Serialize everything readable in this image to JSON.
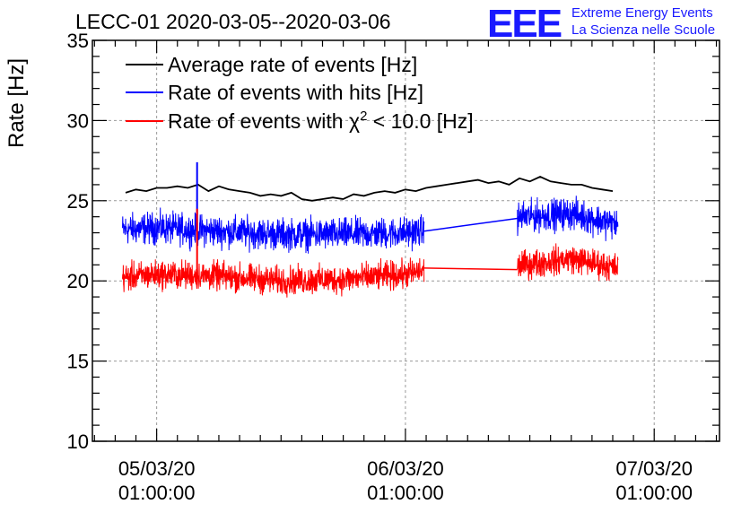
{
  "chart_data": {
    "type": "line",
    "title": "LECC-01 2020-03-05--2020-03-06",
    "ylabel": "Rate [Hz]",
    "xlabel": "",
    "ylim": [
      10,
      35
    ],
    "xlim_hours": [
      -6.2,
      54.3
    ],
    "y_ticks": [
      10,
      15,
      20,
      25,
      30,
      35
    ],
    "x_ticks": [
      {
        "hour": 0,
        "date": "05/03/20",
        "time": "01:00:00"
      },
      {
        "hour": 24,
        "date": "06/03/20",
        "time": "01:00:00"
      },
      {
        "hour": 48,
        "date": "07/03/20",
        "time": "01:00:00"
      }
    ],
    "grid": true,
    "legend_position": "top-left",
    "series": [
      {
        "name": "Average rate of events [Hz]",
        "color": "#000000",
        "segments": [
          [
            [
              -3,
              25.5
            ],
            [
              -2,
              25.7
            ],
            [
              -1,
              25.6
            ],
            [
              0,
              25.8
            ],
            [
              1,
              25.8
            ],
            [
              2,
              25.9
            ],
            [
              3,
              25.8
            ],
            [
              4,
              26.0
            ],
            [
              5,
              25.6
            ],
            [
              6,
              25.9
            ],
            [
              7,
              25.7
            ],
            [
              8,
              25.6
            ],
            [
              9,
              25.5
            ],
            [
              10,
              25.3
            ],
            [
              11,
              25.4
            ],
            [
              12,
              25.3
            ],
            [
              13,
              25.5
            ],
            [
              14,
              25.1
            ],
            [
              15,
              25.0
            ],
            [
              16,
              25.1
            ],
            [
              17,
              25.2
            ],
            [
              18,
              25.1
            ],
            [
              19,
              25.4
            ],
            [
              20,
              25.3
            ],
            [
              21,
              25.5
            ],
            [
              22,
              25.6
            ],
            [
              23,
              25.5
            ],
            [
              24,
              25.7
            ],
            [
              25,
              25.6
            ],
            [
              26,
              25.8
            ],
            [
              27,
              25.9
            ],
            [
              28,
              26.0
            ],
            [
              29,
              26.1
            ],
            [
              30,
              26.2
            ],
            [
              31,
              26.3
            ],
            [
              32,
              26.1
            ],
            [
              33,
              26.2
            ],
            [
              34,
              26.0
            ],
            [
              35,
              26.4
            ],
            [
              36,
              26.2
            ],
            [
              37,
              26.5
            ],
            [
              38,
              26.2
            ],
            [
              39,
              26.1
            ],
            [
              40,
              26.0
            ],
            [
              41,
              26.0
            ],
            [
              42,
              25.8
            ],
            [
              43,
              25.7
            ],
            [
              44,
              25.6
            ]
          ]
        ]
      },
      {
        "name": "Rate of events with hits [Hz]",
        "color": "#0000ff",
        "base": [
          [
            -3.5,
            23.2
          ],
          [
            0,
            23.3
          ],
          [
            6,
            23.1
          ],
          [
            12,
            22.9
          ],
          [
            18,
            22.9
          ],
          [
            24,
            23.0
          ],
          [
            25.5,
            23.1
          ],
          [
            35.5,
            24.0
          ],
          [
            40,
            24.2
          ],
          [
            44.5,
            23.5
          ]
        ],
        "segment_ranges": [
          [
            -3.3,
            25.8
          ],
          [
            34.8,
            44.5
          ]
        ],
        "bridge": [
          [
            25.8,
            23.1
          ],
          [
            34.8,
            23.9
          ]
        ],
        "noise_amplitude": 1.1,
        "spikes": [
          {
            "hour": 3.9,
            "value": 27.4
          }
        ]
      },
      {
        "name": "Rate of events with χ² < 10.0 [Hz]",
        "color": "#ff0000",
        "base": [
          [
            -3.5,
            20.2
          ],
          [
            0,
            20.4
          ],
          [
            6,
            20.3
          ],
          [
            12,
            20.0
          ],
          [
            18,
            20.1
          ],
          [
            24,
            20.4
          ],
          [
            25.5,
            20.6
          ],
          [
            35.5,
            21.0
          ],
          [
            40,
            21.4
          ],
          [
            44.5,
            20.8
          ]
        ],
        "segment_ranges": [
          [
            -3.3,
            25.8
          ],
          [
            34.8,
            44.5
          ]
        ],
        "bridge": [
          [
            25.8,
            20.8
          ],
          [
            34.8,
            20.7
          ]
        ],
        "noise_amplitude": 1.0,
        "spikes": [
          {
            "hour": 3.9,
            "value": 24.5
          }
        ]
      }
    ],
    "legend": [
      {
        "label": "Average rate of events [Hz]",
        "color": "#000000"
      },
      {
        "label": "Rate of events with hits [Hz]",
        "color": "#0000ff"
      },
      {
        "label_prefix": "Rate of events with ",
        "label_symbol": "χ",
        "label_sup": "2",
        "label_suffix": " < 10.0 [Hz]",
        "color": "#ff0000"
      }
    ]
  },
  "logo": {
    "mark": "EEE",
    "line1": "Extreme Energy Events",
    "line2": "La Scienza nelle Scuole",
    "color": "#1a1aff"
  }
}
